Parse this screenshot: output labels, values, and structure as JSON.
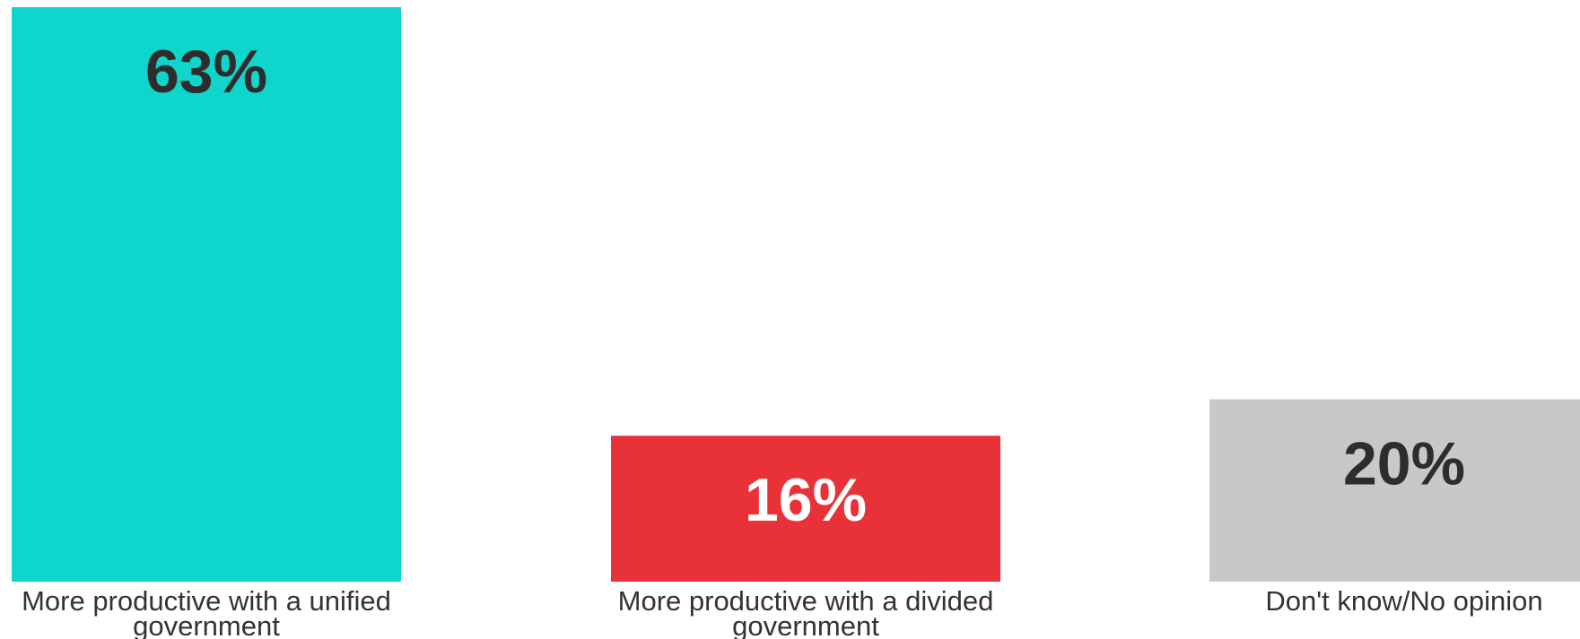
{
  "chart_data": {
    "type": "bar",
    "categories": [
      "More productive with a unified government",
      "More productive with a divided government",
      "Don't know/No opinion"
    ],
    "values": [
      63,
      16,
      20
    ],
    "value_labels": [
      "63%",
      "16%",
      "20%"
    ],
    "category_label_lines": [
      [
        "More productive with a unified",
        "government"
      ],
      [
        "More productive with a divided",
        "government"
      ],
      [
        "Don't know/No opinion"
      ]
    ],
    "bar_colors": [
      "#0ed6cc",
      "#e83238",
      "#c8c8c8"
    ],
    "value_label_colors": [
      "#2d2d2d",
      "#ffffff",
      "#2d2d2d"
    ],
    "ylim": [
      0,
      63
    ],
    "grid": false,
    "title": "",
    "xlabel": "",
    "ylabel": ""
  }
}
